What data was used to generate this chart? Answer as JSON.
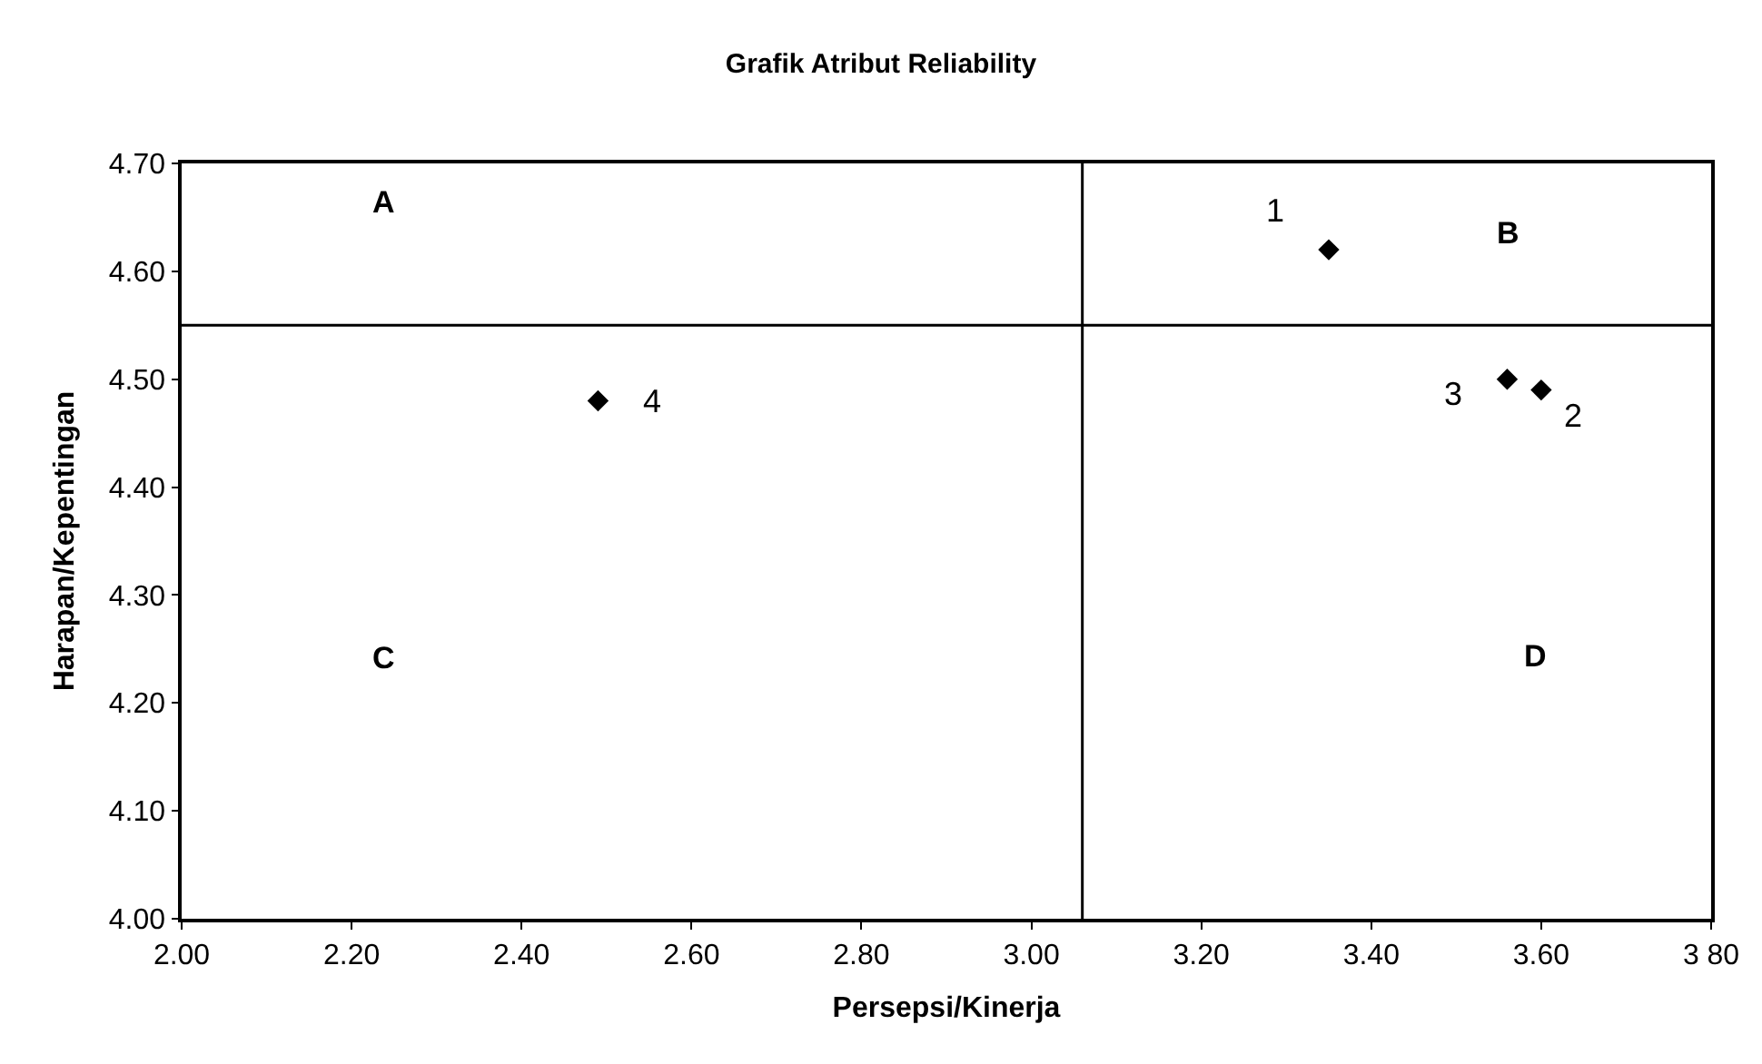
{
  "chart_data": {
    "type": "scatter",
    "title": "Grafik Atribut Reliability",
    "xlabel": "Persepsi/Kinerja",
    "ylabel": "Harapan/Kepentingan",
    "x": [
      3.35,
      3.6,
      3.56,
      2.49
    ],
    "series": [
      {
        "color": "#000000",
        "values": [
          4.62,
          4.49,
          4.5,
          4.48
        ]
      }
    ],
    "marker": "diamond",
    "xlim": [
      2.0,
      3.8
    ],
    "xticks": [
      {
        "value": 2.0,
        "label": "2.00"
      },
      {
        "value": 2.2,
        "label": "2.20"
      },
      {
        "value": 2.4,
        "label": "2.40"
      },
      {
        "value": 2.6,
        "label": "2.60"
      },
      {
        "value": 2.8,
        "label": "2.80"
      },
      {
        "value": 3.0,
        "label": "3.00"
      },
      {
        "value": 3.2,
        "label": "3.20"
      },
      {
        "value": 3.4,
        "label": "3.40"
      },
      {
        "value": 3.6,
        "label": "3.60"
      },
      {
        "value": 3.8,
        "label": "3 80"
      }
    ],
    "ylim": [
      4.0,
      4.7
    ],
    "yticks": [
      {
        "value": 4.0,
        "label": "4.00"
      },
      {
        "value": 4.1,
        "label": "4.10"
      },
      {
        "value": 4.2,
        "label": "4.20"
      },
      {
        "value": 4.3,
        "label": "4.30"
      },
      {
        "value": 4.4,
        "label": "4.40"
      },
      {
        "value": 4.5,
        "label": "4.50"
      },
      {
        "value": 4.6,
        "label": "4.60"
      },
      {
        "value": 4.7,
        "label": "4.70"
      }
    ],
    "ref_lines": [
      {
        "axis": "x",
        "value": 3.06,
        "color": "#000000"
      },
      {
        "axis": "y",
        "value": 4.55,
        "color": "#000000"
      }
    ],
    "annotations": [
      {
        "text": "1",
        "x": 3.35,
        "y": 4.62
      },
      {
        "text": "2",
        "x": 3.6,
        "y": 4.49
      },
      {
        "text": "3",
        "x": 3.56,
        "y": 4.5
      },
      {
        "text": "4",
        "x": 2.49,
        "y": 4.48
      },
      "A",
      "B",
      "C",
      "D"
    ]
  }
}
